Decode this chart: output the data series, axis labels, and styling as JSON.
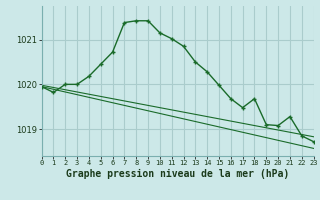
{
  "title": "Graphe pression niveau de la mer (hPa)",
  "background_color": "#cce8e8",
  "grid_color": "#aacccc",
  "line_color": "#1a6b2a",
  "x_values": [
    0,
    1,
    2,
    3,
    4,
    5,
    6,
    7,
    8,
    9,
    10,
    11,
    12,
    13,
    14,
    15,
    16,
    17,
    18,
    19,
    20,
    21,
    22,
    23
  ],
  "y1_values": [
    1019.95,
    1019.82,
    1020.0,
    1020.0,
    1020.18,
    1020.45,
    1020.72,
    1021.38,
    1021.42,
    1021.42,
    1021.15,
    1021.02,
    1020.85,
    1020.5,
    1020.28,
    1019.98,
    1019.68,
    1019.48,
    1019.68,
    1019.1,
    1019.08,
    1019.28,
    1018.85,
    1018.72
  ],
  "y2_values": [
    1019.98,
    1019.93,
    1019.88,
    1019.83,
    1019.78,
    1019.73,
    1019.68,
    1019.63,
    1019.58,
    1019.53,
    1019.48,
    1019.43,
    1019.38,
    1019.33,
    1019.28,
    1019.23,
    1019.18,
    1019.13,
    1019.08,
    1019.03,
    1018.98,
    1018.93,
    1018.88,
    1018.83
  ],
  "y3_values": [
    1019.95,
    1019.89,
    1019.83,
    1019.77,
    1019.71,
    1019.65,
    1019.59,
    1019.53,
    1019.47,
    1019.41,
    1019.35,
    1019.29,
    1019.23,
    1019.17,
    1019.11,
    1019.05,
    1018.99,
    1018.93,
    1018.87,
    1018.81,
    1018.75,
    1018.69,
    1018.63,
    1018.57
  ],
  "yticks": [
    1019,
    1020,
    1021
  ],
  "ylim": [
    1018.4,
    1021.75
  ],
  "xlim": [
    0,
    23
  ],
  "title_fontsize": 7
}
